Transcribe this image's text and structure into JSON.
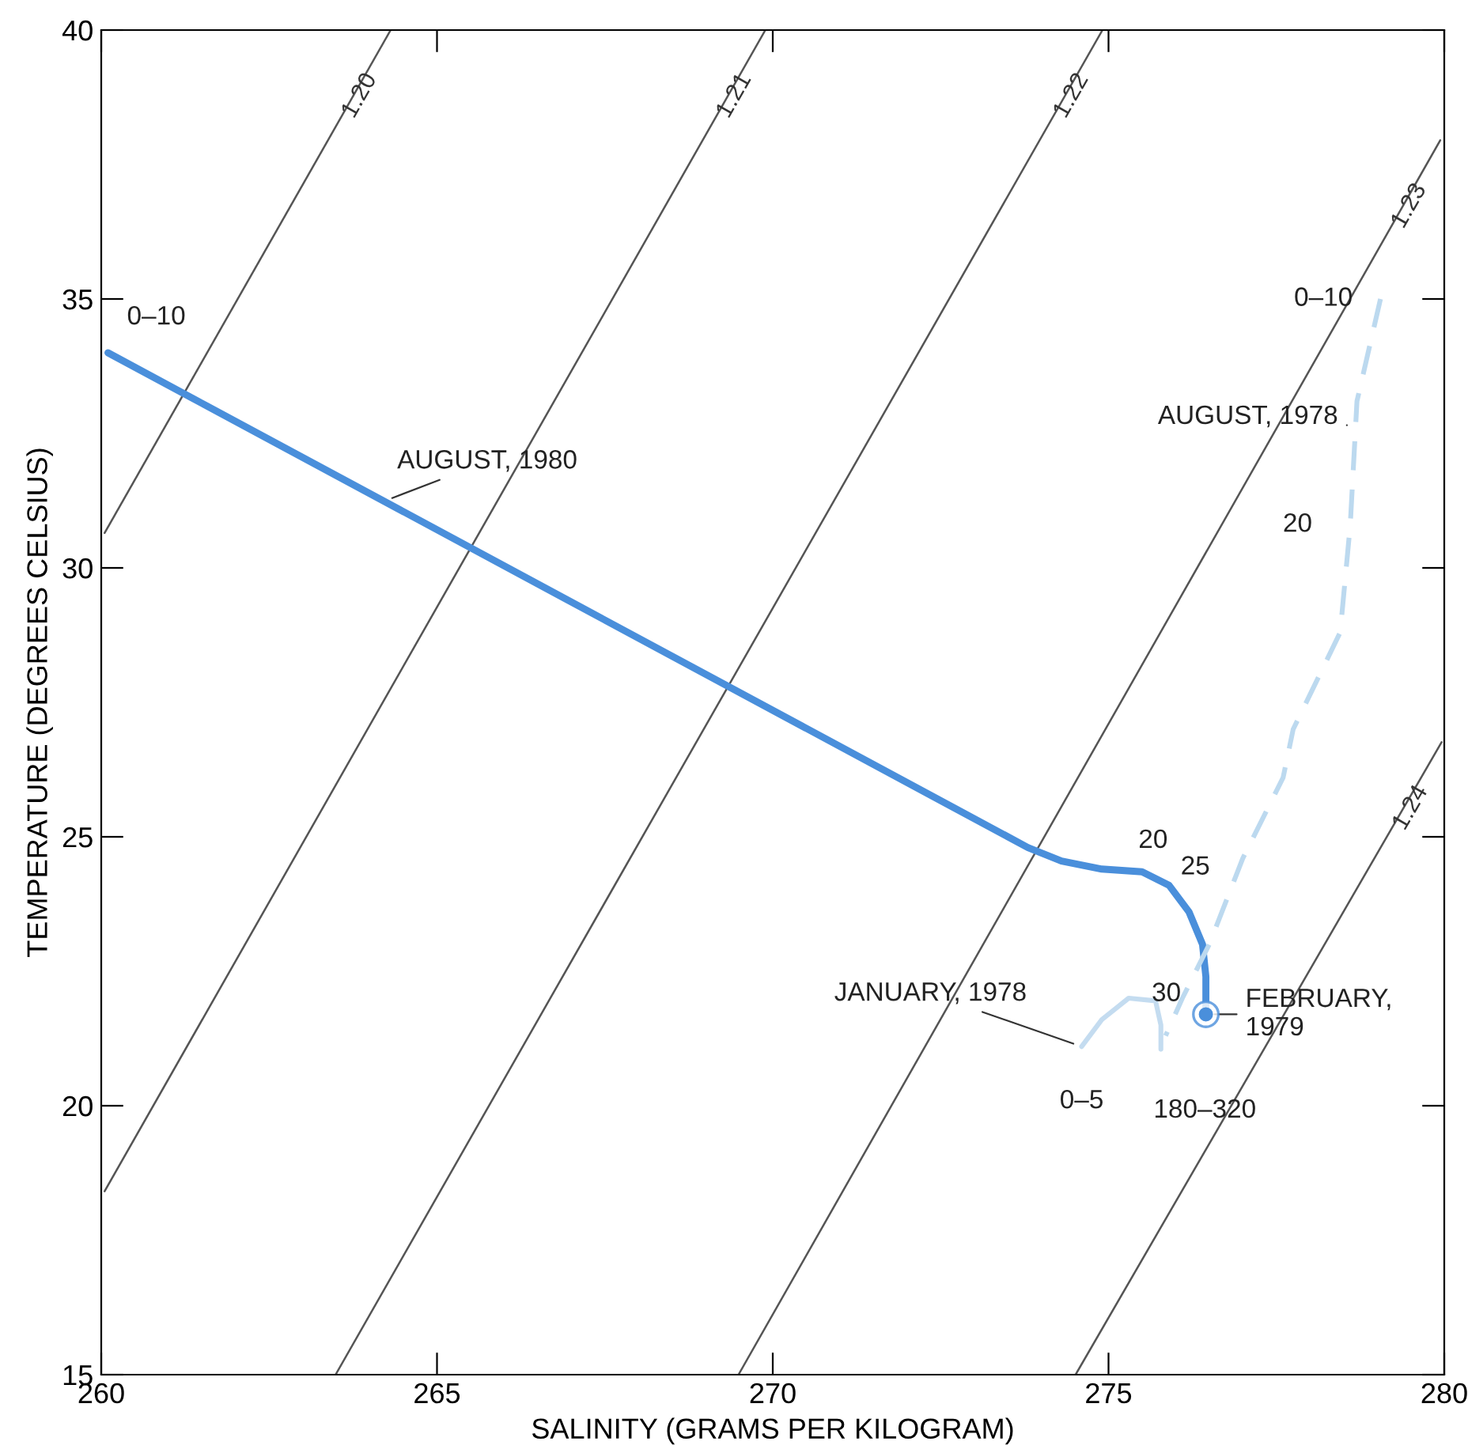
{
  "chart_data": {
    "type": "line",
    "xlabel": "SALINITY (GRAMS PER KILOGRAM)",
    "ylabel": "TEMPERATURE (DEGREES CELSIUS)",
    "xlim": [
      260,
      280
    ],
    "ylim": [
      15,
      40
    ],
    "xticks": [
      260,
      265,
      270,
      275,
      280
    ],
    "yticks": [
      15,
      20,
      25,
      30,
      35,
      40
    ],
    "grid": false,
    "legend": false,
    "marker": "none",
    "series": [
      {
        "name": "1.20",
        "color": "#555555",
        "line_style": "solid",
        "x": [
          260.05,
          264.31
        ],
        "values": [
          30.65,
          40
        ]
      },
      {
        "name": "1.21",
        "color": "#555555",
        "line_style": "solid",
        "x": [
          260.05,
          269.89
        ],
        "values": [
          18.41,
          40
        ]
      },
      {
        "name": "1.22",
        "color": "#555555",
        "line_style": "solid",
        "x": [
          263.49,
          274.91
        ],
        "values": [
          15,
          40
        ]
      },
      {
        "name": "1.23",
        "color": "#555555",
        "line_style": "solid",
        "x": [
          269.49,
          279.94
        ],
        "values": [
          15,
          37.95
        ]
      },
      {
        "name": "1.24",
        "color": "#555555",
        "line_style": "solid",
        "x": [
          274.51,
          279.96
        ],
        "values": [
          15,
          26.76
        ]
      },
      {
        "name": "AUGUST, 1980",
        "color": "#4a8fdb",
        "line_style": "solid",
        "x": [
          260.1,
          273.8,
          274.3,
          274.9,
          275.5,
          275.9,
          276.2,
          276.4,
          276.45,
          276.45
        ],
        "values": [
          34.0,
          24.8,
          24.55,
          24.4,
          24.35,
          24.1,
          23.6,
          23.0,
          22.4,
          21.8
        ]
      },
      {
        "name": "AUGUST, 1978",
        "color": "#bcd9ef",
        "line_style": "dashed",
        "x": [
          279.05,
          278.7,
          278.6,
          278.45,
          277.75,
          277.6,
          277.0,
          276.5,
          276.1,
          275.85
        ],
        "values": [
          35.0,
          33.1,
          30.8,
          28.8,
          27.0,
          26.1,
          24.6,
          23.0,
          22.0,
          21.3
        ]
      },
      {
        "name": "JANUARY, 1978",
        "color": "#c4dcf0",
        "line_style": "solid",
        "x": [
          274.6,
          274.9,
          275.3,
          275.7,
          275.78,
          275.78
        ],
        "values": [
          21.1,
          21.6,
          22.0,
          21.95,
          21.5,
          21.05
        ]
      },
      {
        "name": "FEBRUARY,\n1979",
        "type": "scatter",
        "marker": "circle",
        "color": "#4a8fdb",
        "x": [
          276.45
        ],
        "values": [
          21.7
        ]
      }
    ],
    "annotations": [
      "0–10",
      "20",
      "25",
      "30",
      "0–10",
      "20",
      "0–5",
      "180–320"
    ]
  }
}
